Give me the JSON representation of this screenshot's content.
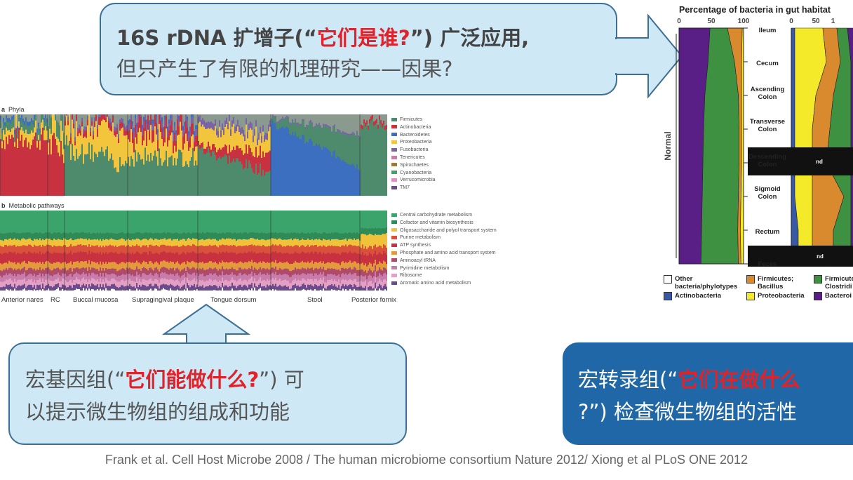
{
  "top_callout": {
    "line1_prefix": "16S rDNA 扩增子(“",
    "line1_highlight": "它们是谁?",
    "line1_suffix": "”) 广泛应用,",
    "line2": "但只产生了有限的机理研究——因果?"
  },
  "left_callout": {
    "line1_prefix": "宏基因组(“",
    "line1_highlight": "它们能做什么?",
    "line1_suffix": "”) 可",
    "line2": "以提示微生物组的组成和功能"
  },
  "right_callout": {
    "line1_prefix": "宏转录组(“",
    "line1_highlight": "它们在做什么",
    "line2_prefix": "?”) 检查微生物组的活性"
  },
  "citation": "Frank et al. Cell Host Microbe 2008 / The human microbiome consortium Nature 2012/ Xiong et al PLoS ONE 2012",
  "panel_a": {
    "label": "a",
    "title": "Phyla",
    "legend": [
      {
        "name": "Firmicutes",
        "color": "#4e8a6c"
      },
      {
        "name": "Actinobacteria",
        "color": "#c8313f"
      },
      {
        "name": "Bacteroidetes",
        "color": "#3d6fc0"
      },
      {
        "name": "Proteobacteria",
        "color": "#f2c53c"
      },
      {
        "name": "Fusobacteria",
        "color": "#7a63a8"
      },
      {
        "name": "Tenericutes",
        "color": "#c77caa"
      },
      {
        "name": "Spirochaetes",
        "color": "#9b7a3c"
      },
      {
        "name": "Cyanobacteria",
        "color": "#3fa463"
      },
      {
        "name": "Verrucomicrobia",
        "color": "#e08fbf"
      },
      {
        "name": "TM7",
        "color": "#6c4b8c"
      }
    ]
  },
  "panel_b": {
    "label": "b",
    "title": "Metabolic pathways",
    "legend": [
      {
        "name": "Central carbohydrate metabolism",
        "color": "#3aa46a"
      },
      {
        "name": "Cofactor and vitamin biosynthesis",
        "color": "#2e8a57"
      },
      {
        "name": "Oligosaccharide and polyol transport system",
        "color": "#f0c23a"
      },
      {
        "name": "Purine metabolism",
        "color": "#d9513a"
      },
      {
        "name": "ATP synthesis",
        "color": "#c8313f"
      },
      {
        "name": "Phosphate and amino acid transport system",
        "color": "#e39a3c"
      },
      {
        "name": "Aminoacyl tRNA",
        "color": "#b04a6a"
      },
      {
        "name": "Pyrimidine metabolism",
        "color": "#c77caa"
      },
      {
        "name": "Ribosome",
        "color": "#e3a0c4"
      },
      {
        "name": "Aromatic amino acid metabolism",
        "color": "#6c4b8c"
      }
    ]
  },
  "body_sites": [
    "Anterior nares",
    "RC",
    "Buccal mucosa",
    "Supragingival plaque",
    "Tongue dorsum",
    "Stool",
    "Posterior fornix"
  ],
  "gut_chart": {
    "title": "Percentage of bacteria in gut habitat",
    "group_label": "Normal",
    "axis1_ticks": [
      "0",
      "50",
      "100"
    ],
    "axis2_ticks": [
      "0",
      "50",
      "1"
    ],
    "sites": [
      {
        "name": "Ileum",
        "lines": [
          "Ileum"
        ]
      },
      {
        "name": "Cecum",
        "lines": [
          "Cecum"
        ]
      },
      {
        "name": "Ascending Colon",
        "lines": [
          "Ascending",
          "Colon"
        ]
      },
      {
        "name": "Transverse Colon",
        "lines": [
          "Transverse",
          "Colon"
        ]
      },
      {
        "name": "Descending Colon",
        "lines": [
          "Descending",
          "Colon"
        ]
      },
      {
        "name": "Sigmoid Colon",
        "lines": [
          "Sigmoid",
          "Colon"
        ]
      },
      {
        "name": "Rectum",
        "lines": [
          "Rectum"
        ]
      },
      {
        "name": "Feces",
        "lines": [
          "Feces"
        ]
      }
    ],
    "nd_label": "nd",
    "legend": [
      {
        "lines": [
          "Other",
          "bacteria/phylotypes"
        ],
        "color": "#ffffff"
      },
      {
        "lines": [
          "Firmicutes;",
          "Bacillus"
        ],
        "color": "#d98a2f"
      },
      {
        "lines": [
          "Firmicute",
          "Clostridi"
        ],
        "color": "#3e9140"
      },
      {
        "lines": [
          "Actinobacteria"
        ],
        "color": "#3858a8"
      },
      {
        "lines": [
          "Proteobacteria"
        ],
        "color": "#f4ea2a"
      },
      {
        "lines": [
          "Bacteroi"
        ],
        "color": "#5a1f86"
      }
    ]
  }
}
